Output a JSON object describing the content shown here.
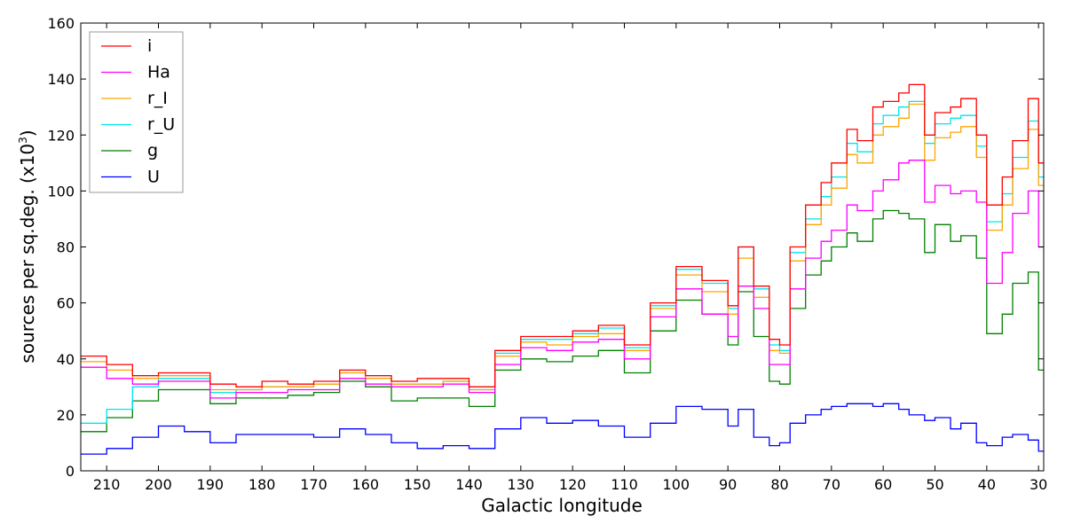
{
  "chart_data": {
    "type": "line",
    "style": "step",
    "xlabel": "Galactic longitude",
    "ylabel_text": "sources per sq.deg. (x10",
    "ylabel_exp": "3",
    "ylabel_close": ")",
    "xlim": [
      215,
      29
    ],
    "ylim": [
      0,
      160
    ],
    "x_ticks": [
      210,
      200,
      190,
      180,
      170,
      160,
      150,
      140,
      130,
      120,
      110,
      100,
      90,
      80,
      70,
      60,
      50,
      40,
      30
    ],
    "y_ticks": [
      0,
      20,
      40,
      60,
      80,
      100,
      120,
      140,
      160
    ],
    "grid": false,
    "legend_position": "top-left",
    "x": [
      215,
      210,
      205,
      200,
      195,
      190,
      185,
      180,
      175,
      170,
      165,
      160,
      155,
      150,
      145,
      140,
      135,
      130,
      125,
      120,
      115,
      110,
      105,
      100,
      95,
      90,
      88,
      85,
      82,
      80,
      78,
      75,
      72,
      70,
      67,
      65,
      62,
      60,
      57,
      55,
      52,
      50,
      47,
      45,
      42,
      40,
      37,
      35,
      32,
      30
    ],
    "series": [
      {
        "name": "i",
        "color": "#ff0000",
        "values": [
          41,
          38,
          34,
          35,
          35,
          31,
          30,
          32,
          31,
          32,
          36,
          34,
          32,
          33,
          33,
          30,
          43,
          48,
          48,
          50,
          52,
          45,
          60,
          73,
          68,
          59,
          80,
          66,
          47,
          45,
          80,
          95,
          103,
          110,
          122,
          118,
          130,
          132,
          135,
          138,
          120,
          128,
          130,
          133,
          120,
          95,
          105,
          118,
          133,
          110
        ]
      },
      {
        "name": "Ha",
        "color": "#ff00ff",
        "values": [
          37,
          33,
          31,
          32,
          32,
          26,
          28,
          28,
          29,
          29,
          33,
          31,
          30,
          30,
          31,
          28,
          38,
          44,
          43,
          46,
          47,
          40,
          55,
          65,
          56,
          48,
          66,
          58,
          38,
          38,
          65,
          76,
          82,
          86,
          95,
          93,
          100,
          104,
          110,
          111,
          96,
          102,
          99,
          100,
          96,
          67,
          78,
          92,
          100,
          80
        ]
      },
      {
        "name": "r_I",
        "color": "#ffa500",
        "values": [
          39,
          36,
          33,
          34,
          34,
          29,
          29,
          30,
          30,
          31,
          35,
          33,
          31,
          31,
          32,
          29,
          41,
          46,
          45,
          48,
          49,
          43,
          58,
          70,
          64,
          56,
          76,
          62,
          43,
          42,
          75,
          88,
          95,
          101,
          113,
          110,
          120,
          123,
          126,
          131,
          111,
          119,
          121,
          123,
          112,
          86,
          95,
          108,
          122,
          102
        ]
      },
      {
        "name": "r_U",
        "color": "#00e5ee",
        "values": [
          17,
          22,
          30,
          33,
          33,
          28,
          29,
          30,
          30,
          31,
          35,
          33,
          31,
          31,
          32,
          29,
          42,
          47,
          47,
          49,
          51,
          44,
          59,
          72,
          67,
          58,
          80,
          65,
          45,
          43,
          78,
          90,
          98,
          105,
          117,
          114,
          124,
          127,
          130,
          132,
          117,
          124,
          126,
          127,
          116,
          89,
          99,
          112,
          125,
          105
        ]
      },
      {
        "name": "g",
        "color": "#008000",
        "values": [
          14,
          19,
          25,
          29,
          29,
          24,
          26,
          26,
          27,
          28,
          32,
          30,
          25,
          26,
          26,
          23,
          36,
          40,
          39,
          41,
          43,
          35,
          50,
          61,
          56,
          45,
          64,
          48,
          32,
          31,
          58,
          70,
          75,
          80,
          85,
          82,
          90,
          93,
          92,
          90,
          78,
          88,
          82,
          84,
          76,
          49,
          56,
          67,
          71,
          36
        ]
      },
      {
        "name": "U",
        "color": "#0000ff",
        "values": [
          6,
          8,
          12,
          16,
          14,
          10,
          13,
          13,
          13,
          12,
          15,
          13,
          10,
          8,
          9,
          8,
          15,
          19,
          17,
          18,
          16,
          12,
          17,
          23,
          22,
          16,
          22,
          12,
          9,
          10,
          17,
          20,
          22,
          23,
          24,
          24,
          23,
          24,
          22,
          20,
          18,
          19,
          15,
          17,
          10,
          9,
          12,
          13,
          11,
          7
        ]
      }
    ]
  }
}
